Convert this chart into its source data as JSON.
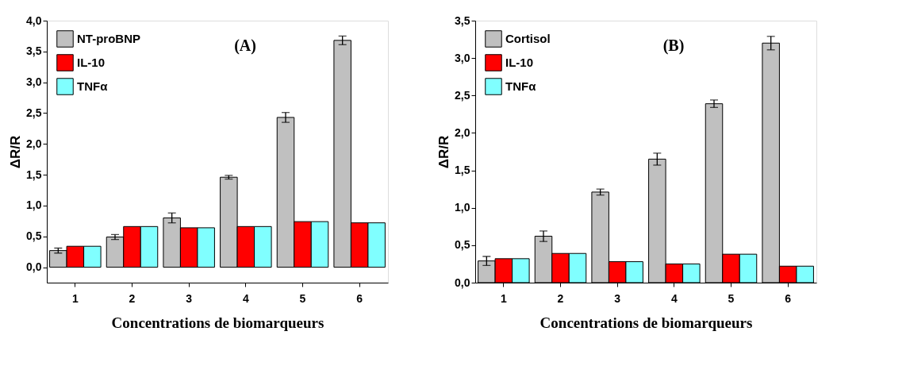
{
  "chart_data": [
    {
      "type": "bar",
      "annotations": [
        "(A)"
      ],
      "xlabel": "Concentrations de biomarqueurs",
      "ylabel": "ΔR/R",
      "categories": [
        "1",
        "2",
        "3",
        "4",
        "5",
        "6"
      ],
      "series": [
        {
          "name": "NT-proBNP",
          "color": "#c0c0c0",
          "values": [
            0.27,
            0.49,
            0.8,
            1.46,
            2.43,
            3.68
          ],
          "errors": [
            0.04,
            0.04,
            0.08,
            0.03,
            0.08,
            0.07
          ]
        },
        {
          "name": "IL-10",
          "color": "#ff0000",
          "values": [
            0.34,
            0.66,
            0.64,
            0.66,
            0.74,
            0.72
          ]
        },
        {
          "name": "TNFα",
          "color": "#80ffff",
          "values": [
            0.34,
            0.66,
            0.64,
            0.66,
            0.74,
            0.72
          ]
        }
      ],
      "ylim": [
        -0.25,
        4.0
      ],
      "yticks": [
        {
          "value": 0,
          "label": "0,0"
        },
        {
          "value": 0.5,
          "label": "0,5"
        },
        {
          "value": 1.0,
          "label": "1,0"
        },
        {
          "value": 1.5,
          "label": "1,5"
        },
        {
          "value": 2.0,
          "label": "2,0"
        },
        {
          "value": 2.5,
          "label": "2,5"
        },
        {
          "value": 3.0,
          "label": "3,0"
        },
        {
          "value": 3.5,
          "label": "3,5"
        },
        {
          "value": 4.0,
          "label": "4,0"
        }
      ],
      "grid": false,
      "legend": "top left"
    },
    {
      "type": "bar",
      "annotations": [
        "(B)"
      ],
      "xlabel": "Concentrations de biomarqueurs",
      "ylabel": "ΔR/R",
      "categories": [
        "1",
        "2",
        "3",
        "4",
        "5",
        "6"
      ],
      "series": [
        {
          "name": "Cortisol",
          "color": "#c0c0c0",
          "values": [
            0.29,
            0.62,
            1.21,
            1.65,
            2.39,
            3.2
          ],
          "errors": [
            0.06,
            0.07,
            0.04,
            0.08,
            0.05,
            0.09
          ]
        },
        {
          "name": "IL-10",
          "color": "#ff0000",
          "values": [
            0.32,
            0.39,
            0.28,
            0.25,
            0.38,
            0.22
          ]
        },
        {
          "name": "TNFα",
          "color": "#80ffff",
          "values": [
            0.32,
            0.39,
            0.28,
            0.25,
            0.38,
            0.22
          ]
        }
      ],
      "ylim": [
        0,
        3.5
      ],
      "yticks": [
        {
          "value": 0,
          "label": "0,0"
        },
        {
          "value": 0.5,
          "label": "0,5"
        },
        {
          "value": 1.0,
          "label": "1,0"
        },
        {
          "value": 1.5,
          "label": "1,5"
        },
        {
          "value": 2.0,
          "label": "2,0"
        },
        {
          "value": 2.5,
          "label": "2,5"
        },
        {
          "value": 3.0,
          "label": "3,0"
        },
        {
          "value": 3.5,
          "label": "3,5"
        }
      ],
      "grid": false,
      "legend": "top left"
    }
  ]
}
